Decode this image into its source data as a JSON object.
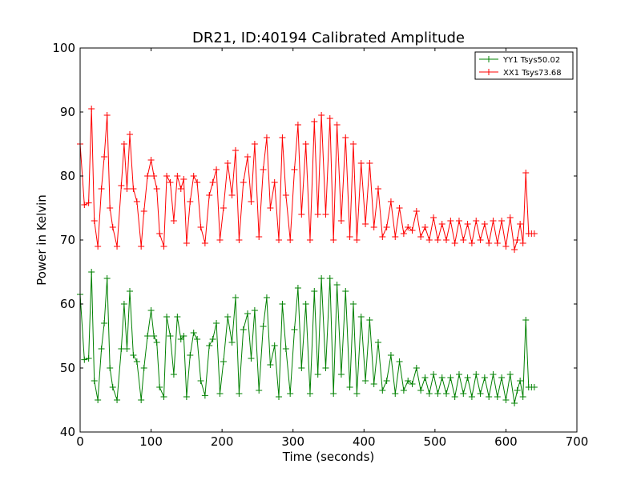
{
  "chart_data": {
    "type": "line",
    "title": "DR21, ID:40194 Calibrated Amplitude",
    "xlabel": "Time (seconds)",
    "ylabel": "Power in Kelvin",
    "xlim": [
      0,
      700
    ],
    "ylim": [
      40,
      100
    ],
    "xticks": [
      0,
      100,
      200,
      300,
      400,
      500,
      600,
      700
    ],
    "yticks": [
      40,
      50,
      60,
      70,
      80,
      90,
      100
    ],
    "grid": false,
    "legend_position": "top-right",
    "marker": "+",
    "series": [
      {
        "name": "YY1 Tsys50.02",
        "color": "#008000",
        "x": [
          0,
          6,
          12,
          16,
          20,
          25,
          30,
          34,
          38,
          42,
          46,
          52,
          58,
          62,
          66,
          70,
          75,
          80,
          86,
          90,
          95,
          100,
          104,
          108,
          112,
          118,
          122,
          127,
          132,
          137,
          142,
          146,
          150,
          155,
          160,
          165,
          170,
          176,
          182,
          187,
          192,
          197,
          202,
          208,
          214,
          219,
          224,
          230,
          236,
          241,
          246,
          252,
          258,
          263,
          268,
          274,
          280,
          285,
          290,
          296,
          302,
          307,
          312,
          318,
          324,
          330,
          335,
          340,
          346,
          352,
          357,
          362,
          368,
          374,
          380,
          385,
          390,
          396,
          402,
          408,
          414,
          420,
          426,
          432,
          438,
          444,
          450,
          456,
          462,
          468,
          474,
          480,
          486,
          492,
          498,
          504,
          510,
          516,
          522,
          528,
          534,
          540,
          546,
          552,
          558,
          564,
          570,
          576,
          582,
          588,
          594,
          600,
          606,
          612,
          616,
          620,
          624,
          628,
          632,
          636,
          640
        ],
        "values": [
          61.5,
          51.3,
          51.5,
          65.0,
          48.0,
          45.0,
          53.0,
          57.0,
          64.0,
          50.0,
          47.0,
          45.0,
          53.0,
          60.0,
          53.0,
          62.0,
          52.0,
          51.0,
          45.0,
          50.0,
          55.0,
          59.0,
          55.0,
          54.0,
          47.0,
          45.5,
          58.0,
          55.0,
          49.0,
          58.0,
          54.5,
          55.0,
          45.5,
          52.0,
          55.5,
          54.5,
          48.0,
          45.7,
          53.5,
          54.5,
          57.0,
          46.0,
          51.0,
          58.0,
          54.0,
          61.0,
          46.0,
          56.0,
          58.5,
          51.5,
          59.0,
          46.5,
          56.5,
          61.0,
          50.5,
          53.5,
          45.5,
          60.0,
          53.0,
          46.0,
          56.0,
          62.5,
          50.0,
          60.0,
          46.0,
          62.0,
          49.0,
          64.0,
          50.0,
          64.0,
          46.0,
          63.0,
          49.0,
          62.0,
          47.0,
          60.0,
          46.0,
          58.0,
          48.0,
          57.5,
          47.5,
          54.0,
          46.5,
          48.0,
          52.0,
          46.0,
          51.0,
          46.5,
          48.0,
          47.5,
          50.0,
          46.5,
          48.5,
          46.0,
          49.0,
          46.0,
          48.5,
          46.0,
          48.5,
          45.5,
          49.0,
          46.0,
          48.5,
          45.5,
          49.0,
          46.0,
          48.5,
          45.5,
          49.0,
          45.5,
          48.5,
          45.0,
          49.0,
          44.5,
          46.5,
          48.0,
          45.5,
          57.5,
          47.0,
          47.0,
          47.0
        ]
      },
      {
        "name": "XX1 Tsys73.68",
        "color": "#ff0000",
        "x": [
          0,
          6,
          12,
          16,
          20,
          25,
          30,
          34,
          38,
          42,
          46,
          52,
          58,
          62,
          66,
          70,
          75,
          80,
          86,
          90,
          95,
          100,
          104,
          108,
          112,
          118,
          122,
          127,
          132,
          137,
          142,
          146,
          150,
          155,
          160,
          165,
          170,
          176,
          182,
          187,
          192,
          197,
          202,
          208,
          214,
          219,
          224,
          230,
          236,
          241,
          246,
          252,
          258,
          263,
          268,
          274,
          280,
          285,
          290,
          296,
          302,
          307,
          312,
          318,
          324,
          330,
          335,
          340,
          346,
          352,
          357,
          362,
          368,
          374,
          380,
          385,
          390,
          396,
          402,
          408,
          414,
          420,
          426,
          432,
          438,
          444,
          450,
          456,
          462,
          468,
          474,
          480,
          486,
          492,
          498,
          504,
          510,
          516,
          522,
          528,
          534,
          540,
          546,
          552,
          558,
          564,
          570,
          576,
          582,
          588,
          594,
          600,
          606,
          612,
          616,
          620,
          624,
          628,
          632,
          636,
          640
        ],
        "values": [
          85.0,
          75.5,
          75.8,
          90.5,
          73.0,
          69.0,
          78.0,
          83.0,
          89.5,
          75.0,
          72.0,
          69.0,
          78.5,
          85.0,
          78.0,
          86.5,
          78.0,
          76.0,
          69.0,
          74.5,
          80.0,
          82.5,
          80.0,
          78.0,
          71.0,
          69.0,
          80.0,
          79.0,
          73.0,
          80.0,
          78.0,
          79.5,
          69.5,
          76.0,
          80.0,
          79.0,
          72.0,
          69.5,
          77.0,
          79.0,
          81.0,
          70.0,
          75.0,
          82.0,
          77.0,
          84.0,
          70.0,
          79.0,
          83.0,
          76.0,
          85.0,
          70.5,
          81.0,
          86.0,
          75.0,
          79.0,
          70.0,
          86.0,
          77.0,
          70.0,
          81.0,
          88.0,
          74.0,
          85.0,
          70.0,
          88.5,
          74.0,
          89.5,
          74.0,
          89.0,
          70.0,
          88.0,
          73.0,
          86.0,
          70.5,
          85.0,
          70.0,
          82.0,
          72.5,
          82.0,
          72.0,
          78.0,
          70.5,
          72.0,
          76.0,
          70.5,
          75.0,
          71.0,
          72.0,
          71.5,
          74.5,
          70.5,
          72.0,
          70.0,
          73.5,
          70.0,
          72.5,
          70.0,
          73.0,
          69.5,
          73.0,
          70.0,
          72.5,
          69.5,
          73.0,
          70.0,
          72.5,
          69.5,
          73.0,
          69.5,
          73.0,
          69.0,
          73.5,
          68.5,
          70.0,
          72.5,
          69.5,
          80.5,
          71.0,
          71.0,
          71.0
        ]
      }
    ]
  }
}
